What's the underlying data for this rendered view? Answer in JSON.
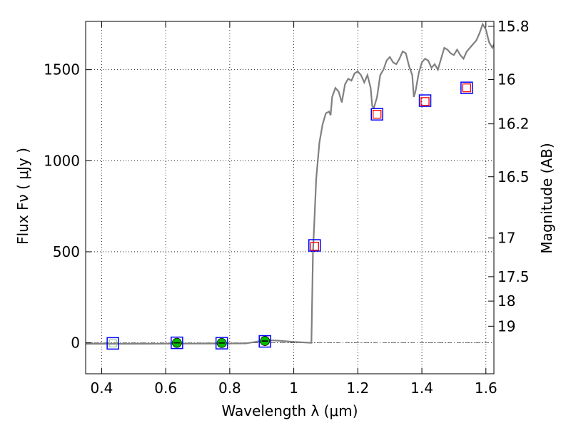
{
  "chart_data": {
    "type": "scatter",
    "xlabel": "Wavelength  λ (μm)",
    "ylabel": "Flux  Fν  ( μJy )",
    "y2label": "Magnitude (AB)",
    "xlim": [
      0.35,
      1.625
    ],
    "ylim": [
      -170,
      1765
    ],
    "grid": true,
    "x_ticks": [
      {
        "value": 0.4,
        "label": "0.4"
      },
      {
        "value": 0.6,
        "label": "0.6"
      },
      {
        "value": 0.8,
        "label": "0.8"
      },
      {
        "value": 1.0,
        "label": "1"
      },
      {
        "value": 1.2,
        "label": "1.2"
      },
      {
        "value": 1.4,
        "label": "1.4"
      },
      {
        "value": 1.6,
        "label": "1.6"
      }
    ],
    "y_ticks": [
      {
        "value": 0,
        "label": "0"
      },
      {
        "value": 500,
        "label": "500"
      },
      {
        "value": 1000,
        "label": "1000"
      },
      {
        "value": 1500,
        "label": "1500"
      }
    ],
    "y2_ticks": [
      {
        "value": 15.8,
        "label": "15.8"
      },
      {
        "value": 16,
        "label": "16"
      },
      {
        "value": 16.2,
        "label": "16.2"
      },
      {
        "value": 16.5,
        "label": "16.5"
      },
      {
        "value": 17,
        "label": "17"
      },
      {
        "value": 17.5,
        "label": "17.5"
      },
      {
        "value": 18,
        "label": "18"
      },
      {
        "value": 19,
        "label": "19"
      }
    ],
    "series": [
      {
        "kind": "line",
        "color": "#808080",
        "points": [
          [
            0.35,
            -5
          ],
          [
            0.5,
            -5
          ],
          [
            0.7,
            -4
          ],
          [
            0.85,
            -3
          ],
          [
            0.88,
            5
          ],
          [
            0.91,
            15
          ],
          [
            0.95,
            12
          ],
          [
            1.0,
            5
          ],
          [
            1.055,
            0
          ],
          [
            1.06,
            500
          ],
          [
            1.065,
            700
          ],
          [
            1.07,
            900
          ],
          [
            1.08,
            1100
          ],
          [
            1.09,
            1200
          ],
          [
            1.1,
            1260
          ],
          [
            1.11,
            1270
          ],
          [
            1.115,
            1250
          ],
          [
            1.12,
            1350
          ],
          [
            1.13,
            1400
          ],
          [
            1.14,
            1380
          ],
          [
            1.15,
            1320
          ],
          [
            1.16,
            1420
          ],
          [
            1.17,
            1450
          ],
          [
            1.18,
            1440
          ],
          [
            1.19,
            1480
          ],
          [
            1.2,
            1490
          ],
          [
            1.21,
            1470
          ],
          [
            1.22,
            1430
          ],
          [
            1.23,
            1470
          ],
          [
            1.24,
            1400
          ],
          [
            1.245,
            1300
          ],
          [
            1.25,
            1290
          ],
          [
            1.26,
            1350
          ],
          [
            1.27,
            1470
          ],
          [
            1.28,
            1500
          ],
          [
            1.29,
            1550
          ],
          [
            1.3,
            1570
          ],
          [
            1.31,
            1540
          ],
          [
            1.32,
            1530
          ],
          [
            1.33,
            1560
          ],
          [
            1.34,
            1600
          ],
          [
            1.35,
            1590
          ],
          [
            1.36,
            1520
          ],
          [
            1.37,
            1470
          ],
          [
            1.375,
            1350
          ],
          [
            1.38,
            1380
          ],
          [
            1.39,
            1480
          ],
          [
            1.4,
            1540
          ],
          [
            1.41,
            1560
          ],
          [
            1.42,
            1550
          ],
          [
            1.43,
            1510
          ],
          [
            1.44,
            1530
          ],
          [
            1.45,
            1500
          ],
          [
            1.46,
            1560
          ],
          [
            1.47,
            1620
          ],
          [
            1.48,
            1610
          ],
          [
            1.49,
            1590
          ],
          [
            1.5,
            1580
          ],
          [
            1.51,
            1610
          ],
          [
            1.52,
            1580
          ],
          [
            1.53,
            1560
          ],
          [
            1.54,
            1600
          ],
          [
            1.55,
            1620
          ],
          [
            1.56,
            1640
          ],
          [
            1.57,
            1660
          ],
          [
            1.58,
            1700
          ],
          [
            1.59,
            1750
          ],
          [
            1.6,
            1720
          ],
          [
            1.61,
            1650
          ],
          [
            1.62,
            1620
          ],
          [
            1.625,
            1640
          ]
        ]
      },
      {
        "kind": "markers",
        "marker": "square",
        "edge_color": "#0000ff",
        "face_color": "none",
        "points": [
          [
            0.435,
            -3
          ],
          [
            0.635,
            0
          ],
          [
            0.775,
            -2
          ],
          [
            0.91,
            8
          ],
          [
            1.065,
            535
          ],
          [
            1.26,
            1255
          ],
          [
            1.41,
            1330
          ],
          [
            1.54,
            1400
          ]
        ]
      },
      {
        "kind": "markers",
        "marker": "square-small",
        "edge_color": "#ff0000",
        "face_color": "none",
        "points": [
          [
            1.065,
            530
          ],
          [
            1.26,
            1255
          ],
          [
            1.41,
            1325
          ],
          [
            1.54,
            1400
          ]
        ]
      },
      {
        "kind": "markers",
        "marker": "circle-bar",
        "face_color": "#00bb00",
        "edge_color": "#000000",
        "points": [
          [
            0.635,
            0
          ],
          [
            0.775,
            -1
          ],
          [
            0.91,
            10
          ]
        ]
      },
      {
        "kind": "markers",
        "marker": "small-square-faint",
        "edge_color": "#7fbf7f",
        "face_color": "none",
        "points": [
          [
            0.435,
            -3
          ]
        ]
      }
    ],
    "reference_line": {
      "y": 0,
      "style": "dashdot",
      "color": "#444444"
    }
  }
}
